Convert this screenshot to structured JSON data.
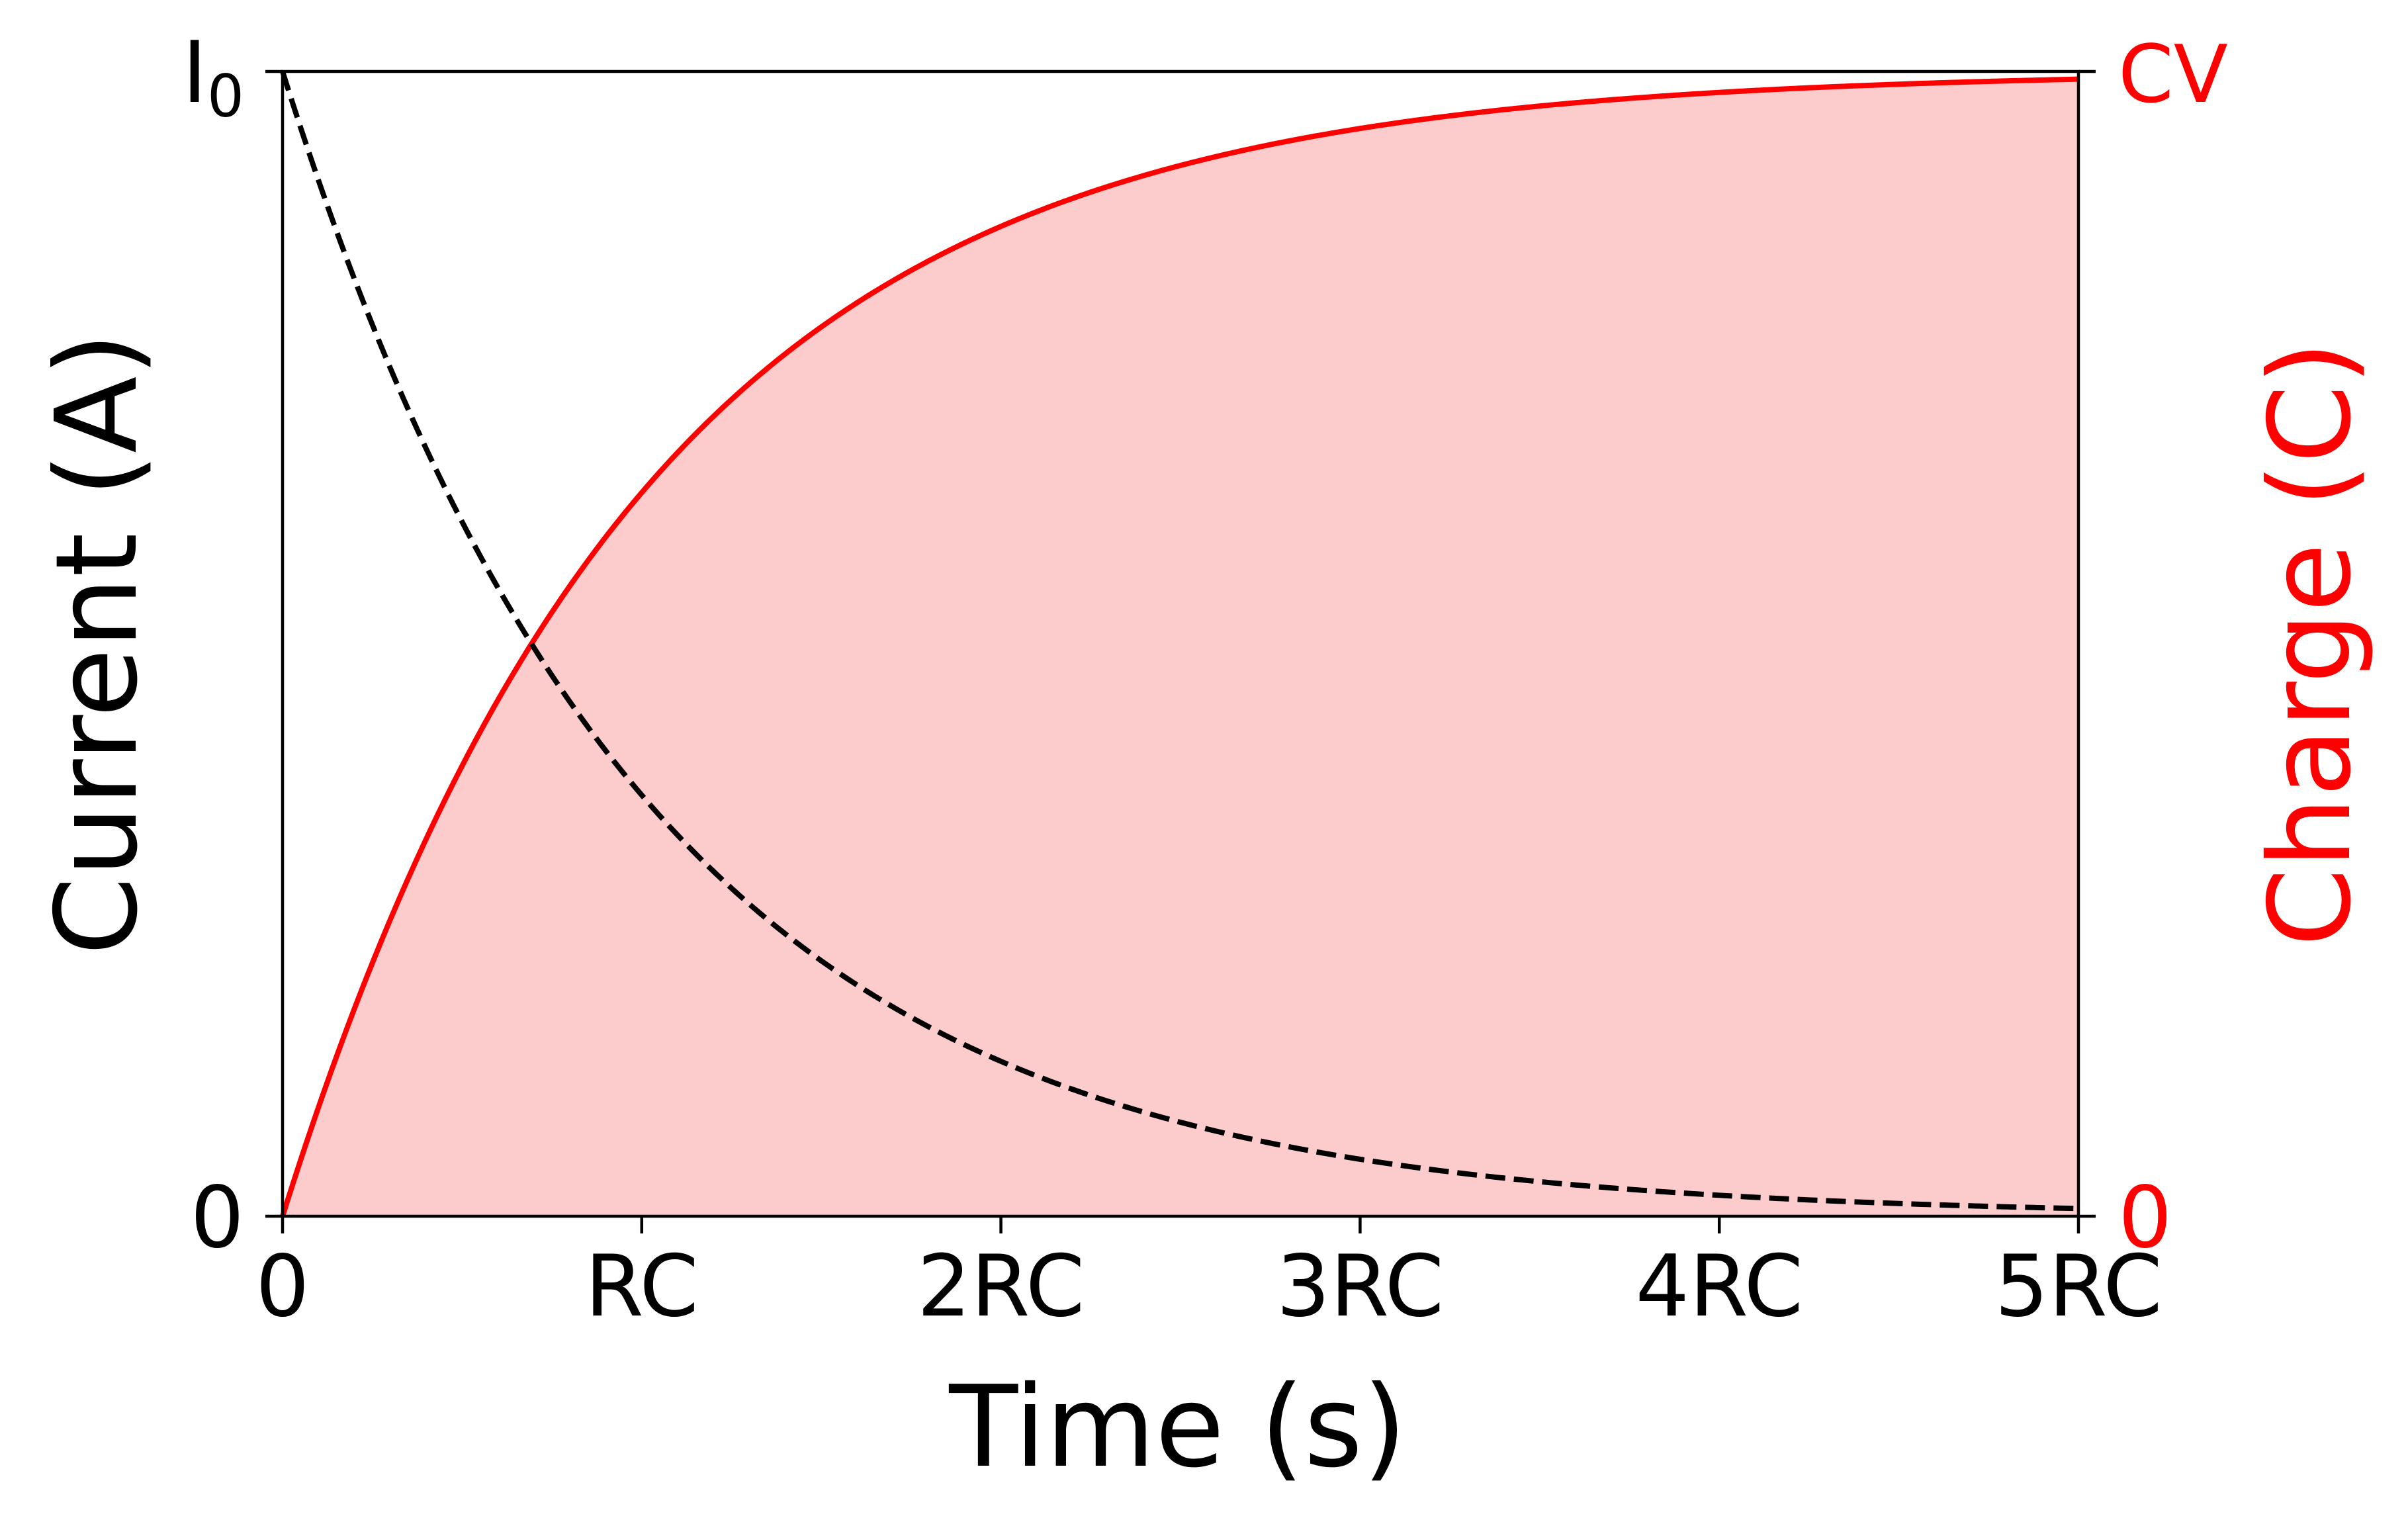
{
  "chart_data": {
    "type": "line",
    "xlabel": "Time (s)",
    "ylabel_left": "Current (A)",
    "ylabel_right": "Charge (C)",
    "x_unit": "RC",
    "xlim": [
      0,
      5
    ],
    "ylim": [
      0,
      1
    ],
    "x_ticks": [
      {
        "value": 0,
        "label": "0"
      },
      {
        "value": 1,
        "label": "RC"
      },
      {
        "value": 2,
        "label": "2RC"
      },
      {
        "value": 3,
        "label": "3RC"
      },
      {
        "value": 4,
        "label": "4RC"
      },
      {
        "value": 5,
        "label": "5RC"
      }
    ],
    "y_left_ticks": [
      {
        "value": 0,
        "label": "0"
      },
      {
        "value": 1,
        "label": "I",
        "sub": "0"
      }
    ],
    "y_right_ticks": [
      {
        "value": 0,
        "label": "0"
      },
      {
        "value": 1,
        "label": "CV"
      }
    ],
    "series": [
      {
        "name": "current",
        "axis": "left",
        "style": "dashed",
        "color": "#000000",
        "x": [
          0,
          0.25,
          0.5,
          0.75,
          1,
          1.25,
          1.5,
          1.75,
          2,
          2.5,
          3,
          3.5,
          4,
          4.5,
          5
        ],
        "y": [
          1.0,
          0.779,
          0.607,
          0.472,
          0.368,
          0.287,
          0.223,
          0.174,
          0.135,
          0.082,
          0.05,
          0.03,
          0.018,
          0.011,
          0.007
        ]
      },
      {
        "name": "charge",
        "axis": "right",
        "style": "solid",
        "fill": true,
        "color": "#ff0000",
        "fill_color": "#fccbcb",
        "x": [
          0,
          0.25,
          0.5,
          0.75,
          1,
          1.25,
          1.5,
          1.75,
          2,
          2.5,
          3,
          3.5,
          4,
          4.5,
          5
        ],
        "y": [
          0.0,
          0.221,
          0.393,
          0.528,
          0.632,
          0.713,
          0.777,
          0.826,
          0.865,
          0.918,
          0.95,
          0.97,
          0.982,
          0.989,
          0.993
        ]
      }
    ]
  }
}
